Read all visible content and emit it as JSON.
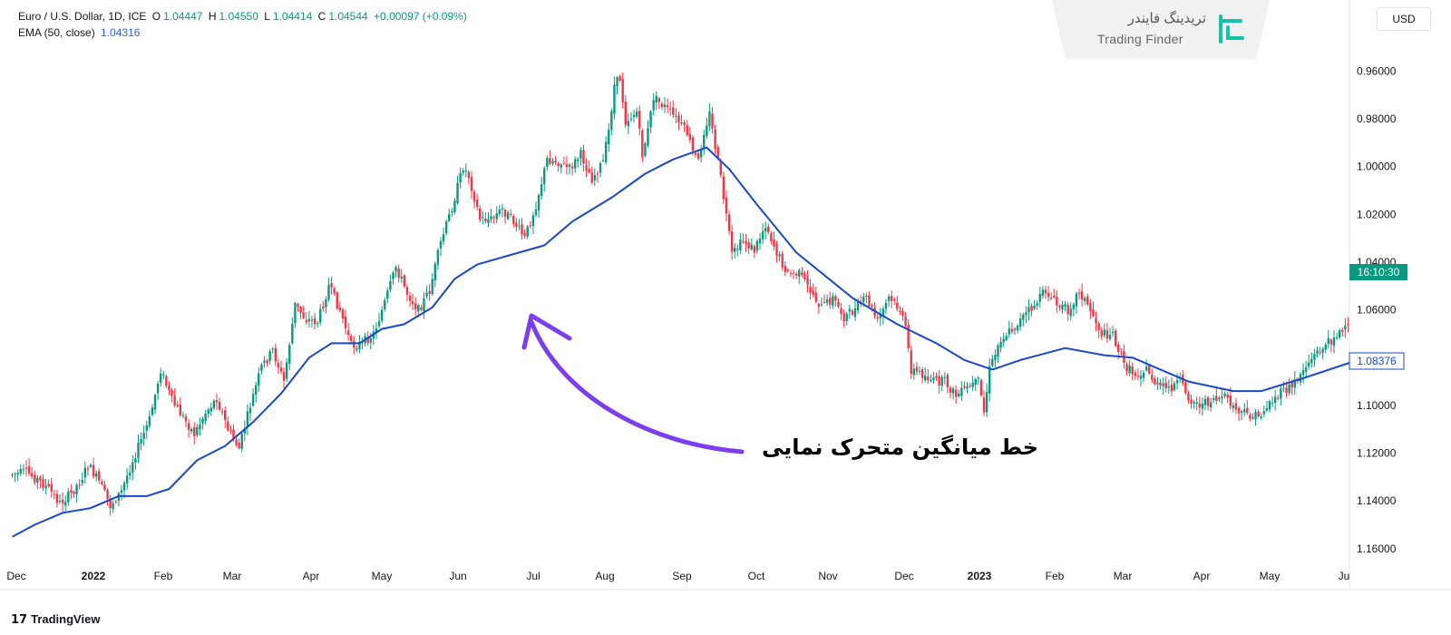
{
  "legend": {
    "symbol": "Euro / U.S. Dollar, 1D, ICE",
    "o_label": "O",
    "o_value": "1.04447",
    "h_label": "H",
    "h_value": "1.04550",
    "l_label": "L",
    "l_value": "1.04414",
    "c_label": "C",
    "c_value": "1.04544",
    "change": "+0.00097 (+0.09%)",
    "ema_label": "EMA (50, close)",
    "ema_value": "1.04316"
  },
  "currency_button": "USD",
  "brand": {
    "persian": "تریدینگ فایندر",
    "english": "Trading Finder"
  },
  "tradingview": "TradingView",
  "annotation": "خط میانگین متحرک نمایی",
  "colors": {
    "up": "#089981",
    "down": "#f23645",
    "ema": "#1848cc",
    "arrow": "#7b3ff0",
    "time_badge": "#089981"
  },
  "chart_data": {
    "type": "candlestick",
    "title": "Euro / U.S. Dollar, 1D, ICE",
    "ylim_top": 0.95,
    "ylim_bottom": 1.165,
    "y_inverted": true,
    "y_ticks": [
      "0.96000",
      "0.98000",
      "1.00000",
      "1.02000",
      "1.04000",
      "1.06000",
      "1.08000",
      "1.10000",
      "1.12000",
      "1.14000",
      "1.16000"
    ],
    "x_ticks": [
      "Dec",
      "2022",
      "Feb",
      "Mar",
      "Apr",
      "May",
      "Jun",
      "Jul",
      "Aug",
      "Sep",
      "Oct",
      "Nov",
      "Dec",
      "2023",
      "Feb",
      "Mar",
      "Apr",
      "May",
      "Ju"
    ],
    "x_ticks_bold": [
      "2022",
      "2023"
    ],
    "badges": {
      "time": "16:10:30",
      "ema": "1.08376"
    },
    "price_path": [
      [
        0,
        1.129
      ],
      [
        6,
        1.128
      ],
      [
        10,
        1.131
      ],
      [
        14,
        1.135
      ],
      [
        18,
        1.141
      ],
      [
        22,
        1.137
      ],
      [
        26,
        1.13
      ],
      [
        28,
        1.125
      ],
      [
        32,
        1.132
      ],
      [
        36,
        1.142
      ],
      [
        40,
        1.136
      ],
      [
        44,
        1.123
      ],
      [
        50,
        1.106
      ],
      [
        54,
        1.085
      ],
      [
        58,
        1.098
      ],
      [
        62,
        1.105
      ],
      [
        66,
        1.112
      ],
      [
        70,
        1.103
      ],
      [
        74,
        1.097
      ],
      [
        78,
        1.11
      ],
      [
        82,
        1.118
      ],
      [
        86,
        1.1
      ],
      [
        90,
        1.084
      ],
      [
        94,
        1.077
      ],
      [
        98,
        1.09
      ],
      [
        102,
        1.058
      ],
      [
        106,
        1.064
      ],
      [
        110,
        1.065
      ],
      [
        114,
        1.05
      ],
      [
        118,
        1.06
      ],
      [
        122,
        1.075
      ],
      [
        126,
        1.074
      ],
      [
        130,
        1.07
      ],
      [
        134,
        1.057
      ],
      [
        138,
        1.042
      ],
      [
        142,
        1.053
      ],
      [
        146,
        1.06
      ],
      [
        150,
        1.052
      ],
      [
        154,
        1.032
      ],
      [
        158,
        1.017
      ],
      [
        162,
        1.0
      ],
      [
        164,
        1.004
      ],
      [
        168,
        1.022
      ],
      [
        172,
        1.022
      ],
      [
        176,
        1.018
      ],
      [
        180,
        1.023
      ],
      [
        184,
        1.03
      ],
      [
        188,
        1.016
      ],
      [
        192,
        0.997
      ],
      [
        196,
        0.998
      ],
      [
        200,
        1.001
      ],
      [
        204,
        0.995
      ],
      [
        208,
        1.005
      ],
      [
        212,
        0.998
      ],
      [
        214,
        0.985
      ],
      [
        216,
        0.966
      ],
      [
        218,
        0.963
      ],
      [
        220,
        0.981
      ],
      [
        224,
        0.977
      ],
      [
        226,
        0.995
      ],
      [
        228,
        0.985
      ],
      [
        230,
        0.971
      ],
      [
        234,
        0.975
      ],
      [
        238,
        0.98
      ],
      [
        242,
        0.986
      ],
      [
        244,
        0.994
      ],
      [
        246,
        0.998
      ],
      [
        248,
        0.985
      ],
      [
        250,
        0.978
      ],
      [
        254,
        1.005
      ],
      [
        258,
        1.037
      ],
      [
        262,
        1.031
      ],
      [
        266,
        1.035
      ],
      [
        270,
        1.024
      ],
      [
        274,
        1.036
      ],
      [
        278,
        1.045
      ],
      [
        282,
        1.045
      ],
      [
        286,
        1.052
      ],
      [
        290,
        1.059
      ],
      [
        294,
        1.055
      ],
      [
        298,
        1.063
      ],
      [
        302,
        1.06
      ],
      [
        306,
        1.055
      ],
      [
        310,
        1.065
      ],
      [
        314,
        1.055
      ],
      [
        318,
        1.06
      ],
      [
        320,
        1.068
      ],
      [
        322,
        1.085
      ],
      [
        326,
        1.087
      ],
      [
        330,
        1.09
      ],
      [
        334,
        1.09
      ],
      [
        338,
        1.096
      ],
      [
        342,
        1.093
      ],
      [
        346,
        1.09
      ],
      [
        348,
        1.103
      ],
      [
        350,
        1.085
      ],
      [
        354,
        1.072
      ],
      [
        358,
        1.068
      ],
      [
        362,
        1.063
      ],
      [
        366,
        1.058
      ],
      [
        370,
        1.052
      ],
      [
        374,
        1.058
      ],
      [
        378,
        1.06
      ],
      [
        382,
        1.052
      ],
      [
        386,
        1.06
      ],
      [
        390,
        1.07
      ],
      [
        394,
        1.07
      ],
      [
        398,
        1.083
      ],
      [
        402,
        1.087
      ],
      [
        406,
        1.085
      ],
      [
        410,
        1.092
      ],
      [
        414,
        1.093
      ],
      [
        418,
        1.09
      ],
      [
        422,
        1.098
      ],
      [
        426,
        1.1
      ],
      [
        430,
        1.097
      ],
      [
        434,
        1.097
      ],
      [
        438,
        1.102
      ],
      [
        442,
        1.104
      ],
      [
        446,
        1.105
      ],
      [
        450,
        1.099
      ],
      [
        454,
        1.095
      ],
      [
        458,
        1.092
      ],
      [
        462,
        1.085
      ],
      [
        466,
        1.079
      ],
      [
        470,
        1.075
      ],
      [
        474,
        1.07
      ],
      [
        478,
        1.068
      ]
    ],
    "ema_path": [
      [
        0,
        1.155
      ],
      [
        8,
        1.15
      ],
      [
        18,
        1.145
      ],
      [
        28,
        1.143
      ],
      [
        38,
        1.138
      ],
      [
        48,
        1.138
      ],
      [
        56,
        1.135
      ],
      [
        66,
        1.123
      ],
      [
        76,
        1.117
      ],
      [
        86,
        1.107
      ],
      [
        96,
        1.095
      ],
      [
        106,
        1.08
      ],
      [
        114,
        1.074
      ],
      [
        124,
        1.074
      ],
      [
        132,
        1.068
      ],
      [
        140,
        1.066
      ],
      [
        150,
        1.059
      ],
      [
        158,
        1.047
      ],
      [
        166,
        1.041
      ],
      [
        178,
        1.037
      ],
      [
        190,
        1.033
      ],
      [
        200,
        1.023
      ],
      [
        214,
        1.013
      ],
      [
        226,
        1.003
      ],
      [
        236,
        0.997
      ],
      [
        248,
        0.992
      ],
      [
        256,
        1.001
      ],
      [
        266,
        1.016
      ],
      [
        280,
        1.036
      ],
      [
        300,
        1.055
      ],
      [
        316,
        1.066
      ],
      [
        330,
        1.074
      ],
      [
        340,
        1.081
      ],
      [
        350,
        1.085
      ],
      [
        360,
        1.081
      ],
      [
        376,
        1.076
      ],
      [
        390,
        1.079
      ],
      [
        400,
        1.08
      ],
      [
        410,
        1.085
      ],
      [
        420,
        1.09
      ],
      [
        436,
        1.094
      ],
      [
        446,
        1.094
      ],
      [
        460,
        1.089
      ],
      [
        478,
        1.082
      ]
    ]
  }
}
